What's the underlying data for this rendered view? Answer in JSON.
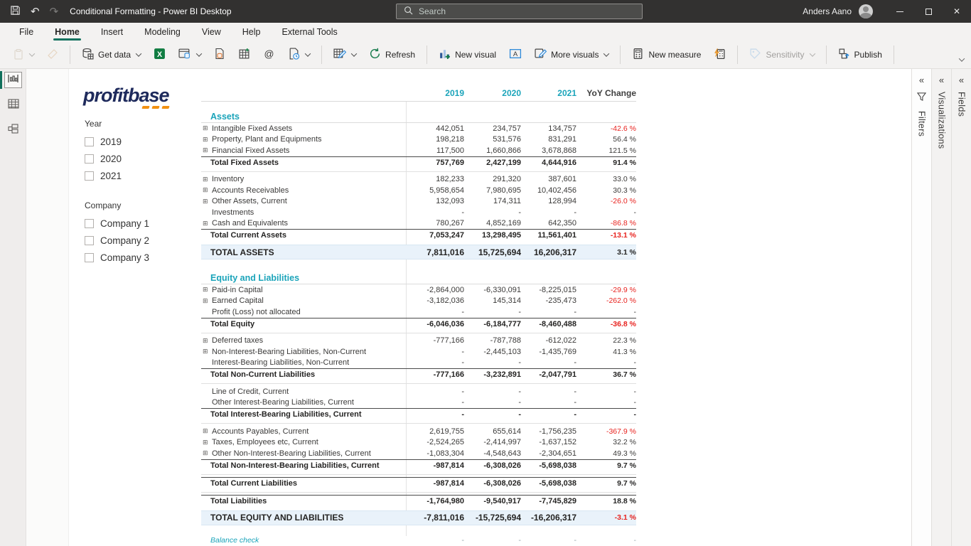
{
  "titlebar": {
    "title": "Conditional Formatting - Power BI Desktop",
    "search_placeholder": "Search",
    "user_name": "Anders Aano"
  },
  "menu": {
    "tabs": [
      "File",
      "Home",
      "Insert",
      "Modeling",
      "View",
      "Help",
      "External Tools"
    ],
    "active": "Home"
  },
  "ribbon": {
    "get_data": "Get data",
    "refresh": "Refresh",
    "new_visual": "New visual",
    "more_visuals": "More visuals",
    "new_measure": "New measure",
    "sensitivity": "Sensitivity",
    "publish": "Publish"
  },
  "icons": {
    "titlebar": [
      "save-icon",
      "undo-icon",
      "redo-icon",
      "search-icon",
      "avatar",
      "minimize-icon",
      "maximize-icon",
      "close-icon"
    ],
    "ribbon": [
      "paste-icon",
      "format-painter-icon",
      "database-icon",
      "excel-workbook-icon",
      "data-hub-icon",
      "enter-data-icon",
      "dataverse-table-icon",
      "dataverse-icon",
      "recent-sources-icon",
      "transform-data-icon",
      "refresh-icon",
      "new-visual-icon",
      "text-box-icon",
      "more-visuals-icon",
      "new-measure-icon",
      "quick-measure-icon",
      "sensitivity-icon",
      "publish-icon"
    ],
    "views": [
      "report-view-icon",
      "data-view-icon",
      "model-view-icon"
    ],
    "panels": [
      "collapse-chevron-icon",
      "filter-funnel-icon"
    ]
  },
  "view_sidebar": {
    "selected": "report"
  },
  "right_panels": {
    "filters": "Filters",
    "visualizations": "Visualizations",
    "fields": "Fields"
  },
  "report": {
    "logo_text": "profitbase",
    "slicers": [
      {
        "title": "Year",
        "options": [
          "2019",
          "2020",
          "2021"
        ]
      },
      {
        "title": "Company",
        "options": [
          "Company 1",
          "Company 2",
          "Company 3"
        ]
      }
    ],
    "table": {
      "columns": [
        "2019",
        "2020",
        "2021",
        "YoY Change"
      ],
      "rows": [
        {
          "type": "blank"
        },
        {
          "type": "heading",
          "label": "Assets"
        },
        {
          "type": "item",
          "expand": true,
          "label": "Intangible Fixed Assets",
          "values": [
            "442,051",
            "234,757",
            "134,757"
          ],
          "yoy": "-42.6 %",
          "yoy_red": true
        },
        {
          "type": "item",
          "expand": true,
          "label": "Property, Plant and Equipments",
          "values": [
            "198,218",
            "531,576",
            "831,291"
          ],
          "yoy": "56.4 %",
          "yoy_red": false
        },
        {
          "type": "item",
          "expand": true,
          "label": "Financial Fixed Assets",
          "values": [
            "117,500",
            "1,660,866",
            "3,678,868"
          ],
          "yoy": "121.5 %",
          "yoy_red": false
        },
        {
          "type": "total",
          "label": "Total Fixed Assets",
          "values": [
            "757,769",
            "2,427,199",
            "4,644,916"
          ],
          "yoy": "91.4 %",
          "yoy_red": false
        },
        {
          "type": "divider"
        },
        {
          "type": "item",
          "expand": true,
          "label": "Inventory",
          "values": [
            "182,233",
            "291,320",
            "387,601"
          ],
          "yoy": "33.0 %",
          "yoy_red": false
        },
        {
          "type": "item",
          "expand": true,
          "label": "Accounts Receivables",
          "values": [
            "5,958,654",
            "7,980,695",
            "10,402,456"
          ],
          "yoy": "30.3 %",
          "yoy_red": false
        },
        {
          "type": "item",
          "expand": true,
          "label": "Other Assets, Current",
          "values": [
            "132,093",
            "174,311",
            "128,994"
          ],
          "yoy": "-26.0 %",
          "yoy_red": true
        },
        {
          "type": "item",
          "expand": false,
          "label": "Investments",
          "values": [
            "-",
            "-",
            "-"
          ],
          "yoy": "-",
          "yoy_red": false
        },
        {
          "type": "item",
          "expand": true,
          "label": "Cash and Equivalents",
          "values": [
            "780,267",
            "4,852,169",
            "642,350"
          ],
          "yoy": "-86.8 %",
          "yoy_red": true
        },
        {
          "type": "total",
          "label": "Total Current Assets",
          "values": [
            "7,053,247",
            "13,298,495",
            "11,561,401"
          ],
          "yoy": "-13.1 %",
          "yoy_red": true
        },
        {
          "type": "grand",
          "label": "TOTAL ASSETS",
          "values": [
            "7,811,016",
            "15,725,694",
            "16,206,317"
          ],
          "yoy": "3.1 %",
          "yoy_red": false
        },
        {
          "type": "blank"
        },
        {
          "type": "heading",
          "label": "Equity and Liabilities"
        },
        {
          "type": "item",
          "expand": true,
          "label": "Paid-in Capital",
          "values": [
            "-2,864,000",
            "-6,330,091",
            "-8,225,015"
          ],
          "yoy": "-29.9 %",
          "yoy_red": true
        },
        {
          "type": "item",
          "expand": true,
          "label": "Earned Capital",
          "values": [
            "-3,182,036",
            "145,314",
            "-235,473"
          ],
          "yoy": "-262.0 %",
          "yoy_red": true
        },
        {
          "type": "item",
          "expand": false,
          "label": "Profit (Loss) not allocated",
          "values": [
            "-",
            "-",
            "-"
          ],
          "yoy": "-",
          "yoy_red": false
        },
        {
          "type": "total",
          "label": "Total Equity",
          "values": [
            "-6,046,036",
            "-6,184,777",
            "-8,460,488"
          ],
          "yoy": "-36.8 %",
          "yoy_red": true
        },
        {
          "type": "divider"
        },
        {
          "type": "item",
          "expand": true,
          "label": "Deferred taxes",
          "values": [
            "-777,166",
            "-787,788",
            "-612,022"
          ],
          "yoy": "22.3 %",
          "yoy_red": false
        },
        {
          "type": "item",
          "expand": true,
          "label": "Non-Interest-Bearing Liabilities, Non-Current",
          "values": [
            "-",
            "-2,445,103",
            "-1,435,769"
          ],
          "yoy": "41.3 %",
          "yoy_red": false
        },
        {
          "type": "item",
          "expand": false,
          "label": "Interest-Bearing Liabilities, Non-Current",
          "values": [
            "-",
            "-",
            "-"
          ],
          "yoy": "-",
          "yoy_red": false
        },
        {
          "type": "total",
          "label": "Total Non-Current Liabilities",
          "values": [
            "-777,166",
            "-3,232,891",
            "-2,047,791"
          ],
          "yoy": "36.7 %",
          "yoy_red": false
        },
        {
          "type": "divider"
        },
        {
          "type": "item",
          "expand": false,
          "label": "Line of Credit, Current",
          "values": [
            "-",
            "-",
            "-"
          ],
          "yoy": "-",
          "yoy_red": false
        },
        {
          "type": "item",
          "expand": false,
          "label": "Other Interest-Bearing Liabilities, Current",
          "values": [
            "-",
            "-",
            "-"
          ],
          "yoy": "-",
          "yoy_red": false
        },
        {
          "type": "total",
          "label": "Total Interest-Bearing Liabilities, Current",
          "values": [
            "-",
            "-",
            "-"
          ],
          "yoy": "-",
          "yoy_red": false
        },
        {
          "type": "divider"
        },
        {
          "type": "item",
          "expand": true,
          "label": "Accounts Payables, Current",
          "values": [
            "2,619,755",
            "655,614",
            "-1,756,235"
          ],
          "yoy": "-367.9 %",
          "yoy_red": true
        },
        {
          "type": "item",
          "expand": true,
          "label": "Taxes, Employees etc, Current",
          "values": [
            "-2,524,265",
            "-2,414,997",
            "-1,637,152"
          ],
          "yoy": "32.2 %",
          "yoy_red": false
        },
        {
          "type": "item",
          "expand": true,
          "label": "Other Non-Interest-Bearing Liabilities, Current",
          "values": [
            "-1,083,304",
            "-4,548,643",
            "-2,304,651"
          ],
          "yoy": "49.3 %",
          "yoy_red": false
        },
        {
          "type": "total",
          "label": "Total Non-Interest-Bearing Liabilities, Current",
          "values": [
            "-987,814",
            "-6,308,026",
            "-5,698,038"
          ],
          "yoy": "9.7 %",
          "yoy_red": false
        },
        {
          "type": "divider"
        },
        {
          "type": "total",
          "label": "Total Current Liabilities",
          "values": [
            "-987,814",
            "-6,308,026",
            "-5,698,038"
          ],
          "yoy": "9.7 %",
          "yoy_red": false
        },
        {
          "type": "divider"
        },
        {
          "type": "total",
          "label": "Total Liabilities",
          "values": [
            "-1,764,980",
            "-9,540,917",
            "-7,745,829"
          ],
          "yoy": "18.8 %",
          "yoy_red": false
        },
        {
          "type": "grand",
          "label": "TOTAL EQUITY AND LIABILITIES",
          "values": [
            "-7,811,016",
            "-15,725,694",
            "-16,206,317"
          ],
          "yoy": "-3.1 %",
          "yoy_red": true
        },
        {
          "type": "balance",
          "label": "Balance check",
          "values": [
            "-",
            "-",
            "-"
          ],
          "yoy": "-",
          "yoy_red": false
        }
      ]
    }
  },
  "colors": {
    "accent_teal": "#1ba4ba",
    "negative_red": "#e8231f",
    "grand_row_bg": "#e9f2fa",
    "titlebar_bg": "#323130",
    "menu_underline": "#15735f",
    "logo_navy": "#1e2a5c",
    "logo_orange": "#f29111"
  }
}
